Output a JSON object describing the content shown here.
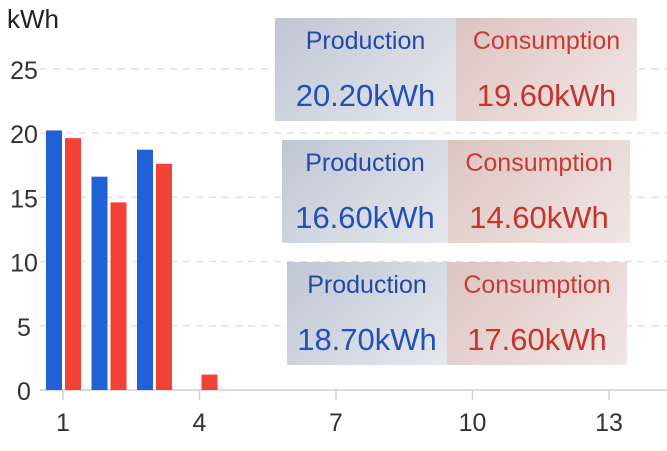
{
  "chart_data": {
    "type": "bar",
    "ylabel": "kWh",
    "ylim": [
      0,
      27
    ],
    "yticks": [
      0,
      5,
      10,
      15,
      20,
      25
    ],
    "xticks": [
      1,
      4,
      7,
      10,
      13
    ],
    "grid": true,
    "series": [
      {
        "name": "Production",
        "color": "#2161d6",
        "x": [
          1,
          2,
          3,
          4
        ],
        "values": [
          20.2,
          16.6,
          18.7,
          0
        ]
      },
      {
        "name": "Consumption",
        "color": "#f24236",
        "x": [
          1,
          2,
          3,
          4
        ],
        "values": [
          19.6,
          14.6,
          17.6,
          1.2
        ]
      }
    ]
  },
  "tooltips": [
    {
      "production_label": "Production",
      "production_value": "20.20kWh",
      "consumption_label": "Consumption",
      "consumption_value": "19.60kWh"
    },
    {
      "production_label": "Production",
      "production_value": "16.60kWh",
      "consumption_label": "Consumption",
      "consumption_value": "14.60kWh"
    },
    {
      "production_label": "Production",
      "production_value": "18.70kWh",
      "consumption_label": "Consumption",
      "consumption_value": "17.60kWh"
    }
  ]
}
